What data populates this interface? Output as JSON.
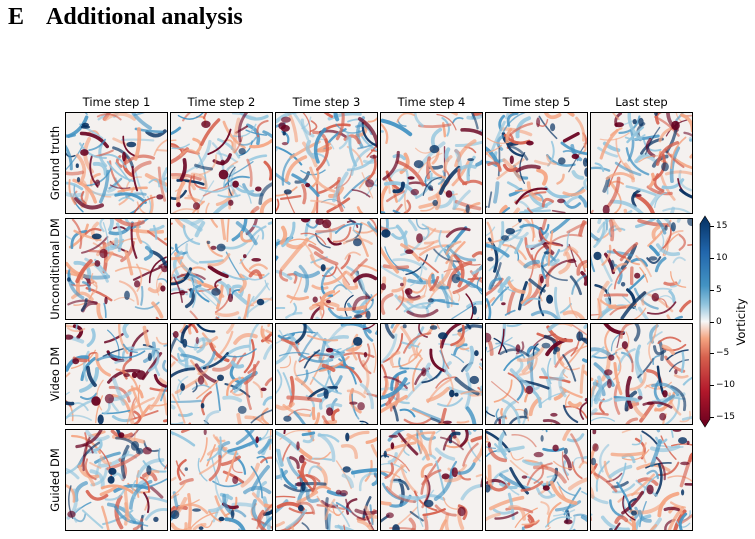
{
  "section": {
    "number": "E",
    "title": "Additional analysis"
  },
  "figure": {
    "column_titles": [
      "Time step 1",
      "Time step 2",
      "Time step 3",
      "Time step 4",
      "Time step 5",
      "Last step"
    ],
    "row_titles": [
      "Ground truth",
      "Unconditional DM",
      "Video DM",
      "Guided DM"
    ],
    "colorbar": {
      "label": "Vorticity",
      "ticks": [
        "15",
        "10",
        "5",
        "0",
        "−5",
        "−10",
        "−15"
      ],
      "range": [
        -15,
        15
      ],
      "colormap": "RdBu_r",
      "extend": "both"
    },
    "colors": {
      "deep_red": "#67001f",
      "red": "#d6604d",
      "light_red": "#f4a582",
      "neutral": "#f7f7f7",
      "light_blue": "#92c5de",
      "blue": "#4393c3",
      "deep_blue": "#053061"
    }
  }
}
